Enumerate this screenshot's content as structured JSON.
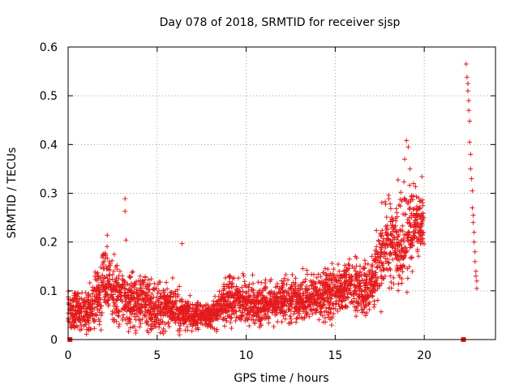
{
  "chart_data": {
    "type": "scatter",
    "title": "Day 078 of 2018, SRMTID for receiver sjsp",
    "xlabel": "GPS time / hours",
    "ylabel": "SRMTID / TECUs",
    "xlim": [
      0,
      24
    ],
    "ylim": [
      0,
      0.6
    ],
    "xticks": [
      0,
      5,
      10,
      15,
      20
    ],
    "xtick_labels": [
      "0",
      "5",
      "10",
      "15",
      "20"
    ],
    "yticks": [
      0,
      0.1,
      0.2,
      0.3,
      0.4,
      0.5,
      0.6
    ],
    "ytick_labels": [
      "0",
      "0.1",
      "0.2",
      "0.3",
      "0.4",
      "0.5",
      "0.6"
    ],
    "grid": true,
    "marker": "+",
    "series": [
      {
        "name": "SRMTID",
        "color": "#e41a1c",
        "trend": [
          [
            0.0,
            0.06,
            0.02
          ],
          [
            0.5,
            0.06,
            0.025
          ],
          [
            1.0,
            0.06,
            0.025
          ],
          [
            1.5,
            0.07,
            0.03
          ],
          [
            2.0,
            0.12,
            0.04
          ],
          [
            2.5,
            0.1,
            0.035
          ],
          [
            3.0,
            0.09,
            0.03
          ],
          [
            3.5,
            0.08,
            0.03
          ],
          [
            4.0,
            0.08,
            0.03
          ],
          [
            4.5,
            0.075,
            0.03
          ],
          [
            5.0,
            0.07,
            0.03
          ],
          [
            5.5,
            0.065,
            0.025
          ],
          [
            6.0,
            0.06,
            0.025
          ],
          [
            6.5,
            0.05,
            0.02
          ],
          [
            7.0,
            0.05,
            0.015
          ],
          [
            7.5,
            0.05,
            0.015
          ],
          [
            8.0,
            0.05,
            0.015
          ],
          [
            8.5,
            0.06,
            0.02
          ],
          [
            9.0,
            0.09,
            0.03
          ],
          [
            9.5,
            0.08,
            0.025
          ],
          [
            10.0,
            0.075,
            0.025
          ],
          [
            10.5,
            0.07,
            0.025
          ],
          [
            11.0,
            0.075,
            0.025
          ],
          [
            11.5,
            0.075,
            0.025
          ],
          [
            12.0,
            0.08,
            0.025
          ],
          [
            12.5,
            0.08,
            0.025
          ],
          [
            13.0,
            0.08,
            0.025
          ],
          [
            13.5,
            0.085,
            0.025
          ],
          [
            14.0,
            0.09,
            0.025
          ],
          [
            14.5,
            0.095,
            0.03
          ],
          [
            15.0,
            0.1,
            0.03
          ],
          [
            15.5,
            0.11,
            0.03
          ],
          [
            16.0,
            0.11,
            0.03
          ],
          [
            16.5,
            0.1,
            0.03
          ],
          [
            17.0,
            0.11,
            0.03
          ],
          [
            17.5,
            0.17,
            0.05
          ],
          [
            18.0,
            0.2,
            0.05
          ],
          [
            18.5,
            0.2,
            0.05
          ],
          [
            19.0,
            0.22,
            0.06
          ],
          [
            19.5,
            0.23,
            0.04
          ]
        ],
        "points": [
          [
            3.2,
            0.289
          ],
          [
            3.2,
            0.263
          ],
          [
            3.25,
            0.204
          ],
          [
            6.4,
            0.197
          ],
          [
            2.2,
            0.214
          ],
          [
            19.0,
            0.408
          ],
          [
            19.1,
            0.395
          ],
          [
            18.9,
            0.37
          ],
          [
            19.2,
            0.35
          ],
          [
            19.4,
            0.32
          ],
          [
            22.35,
            0.565
          ],
          [
            22.4,
            0.538
          ],
          [
            22.45,
            0.525
          ],
          [
            22.45,
            0.51
          ],
          [
            22.5,
            0.49
          ],
          [
            22.5,
            0.47
          ],
          [
            22.55,
            0.448
          ],
          [
            22.55,
            0.405
          ],
          [
            22.6,
            0.38
          ],
          [
            22.6,
            0.35
          ],
          [
            22.65,
            0.33
          ],
          [
            22.7,
            0.305
          ],
          [
            22.7,
            0.27
          ],
          [
            22.75,
            0.255
          ],
          [
            22.75,
            0.24
          ],
          [
            22.8,
            0.22
          ],
          [
            22.8,
            0.2
          ],
          [
            22.85,
            0.18
          ],
          [
            22.85,
            0.16
          ],
          [
            22.9,
            0.14
          ],
          [
            22.9,
            0.13
          ],
          [
            22.95,
            0.12
          ],
          [
            22.95,
            0.105
          ]
        ],
        "zero_markers": [
          0.1,
          22.2
        ]
      }
    ]
  }
}
